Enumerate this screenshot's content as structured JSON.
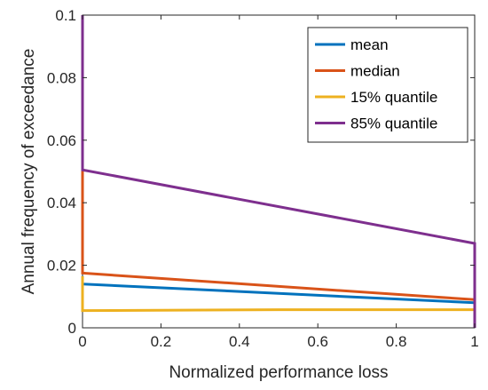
{
  "chart_data": {
    "type": "line",
    "title": "",
    "xlabel": "Normalized performance loss",
    "ylabel": "Annual frequency of exceedance",
    "xlim": [
      0,
      1
    ],
    "ylim": [
      0,
      0.1
    ],
    "xticks": [
      "0",
      "0.2",
      "0.4",
      "0.6",
      "0.8",
      "1"
    ],
    "yticks": [
      "0",
      "0.02",
      "0.04",
      "0.06",
      "0.08",
      "0.1"
    ],
    "grid": false,
    "legend_position": "top-right",
    "series": [
      {
        "name": "mean",
        "color": "#0072BD",
        "points": [
          [
            0,
            0.0165
          ],
          [
            0,
            0.014
          ],
          [
            1,
            0.008
          ],
          [
            1,
            0.0
          ]
        ]
      },
      {
        "name": "median",
        "color": "#D95319",
        "points": [
          [
            0,
            0.0508
          ],
          [
            0,
            0.0175
          ],
          [
            1,
            0.009
          ],
          [
            1,
            0.0
          ]
        ]
      },
      {
        "name": "15% quantile",
        "color": "#EDB120",
        "points": [
          [
            0,
            0.0165
          ],
          [
            0,
            0.0055
          ],
          [
            0.5,
            0.0058
          ],
          [
            1,
            0.0058
          ],
          [
            1,
            0.0
          ]
        ]
      },
      {
        "name": "85% quantile",
        "color": "#7E2F8E",
        "points": [
          [
            0,
            0.1
          ],
          [
            0,
            0.0505
          ],
          [
            1,
            0.027
          ],
          [
            1,
            0.0
          ]
        ]
      }
    ]
  }
}
